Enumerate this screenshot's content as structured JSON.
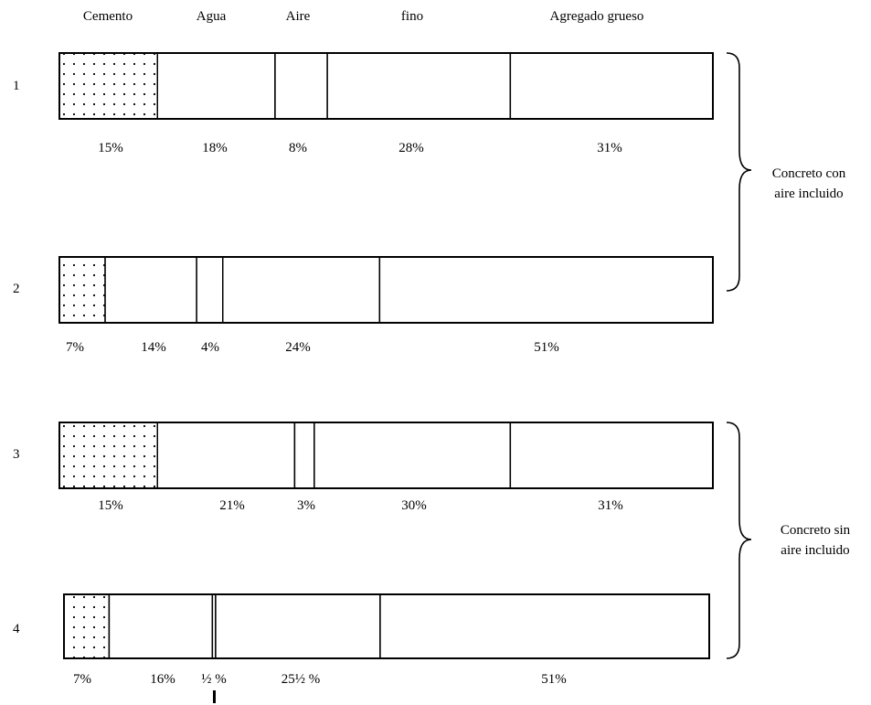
{
  "headers": [
    "Cemento",
    "Agua",
    "Aire",
    "fino",
    "Agregado grueso"
  ],
  "rows": [
    {
      "label": "1",
      "fractions": [
        15,
        18,
        8,
        28,
        31
      ],
      "percent_labels": [
        "15%",
        "18%",
        "8%",
        "28%",
        "31%"
      ]
    },
    {
      "label": "2",
      "fractions": [
        7,
        14,
        4,
        24,
        51
      ],
      "percent_labels": [
        "7%",
        "14%",
        "4%",
        "24%",
        "51%"
      ]
    },
    {
      "label": "3",
      "fractions": [
        15,
        21,
        3,
        30,
        31
      ],
      "percent_labels": [
        "15%",
        "21%",
        "3%",
        "30%",
        "31%"
      ]
    },
    {
      "label": "4",
      "fractions": [
        7,
        16,
        0.5,
        25.5,
        51
      ],
      "percent_labels": [
        "7%",
        "16%",
        "½ %",
        "25½ %",
        "51%"
      ]
    }
  ],
  "groups": [
    {
      "line1": "Concreto con",
      "line2": "aire incluido"
    },
    {
      "line1": "Concreto sin",
      "line2": "aire incluido"
    }
  ]
}
